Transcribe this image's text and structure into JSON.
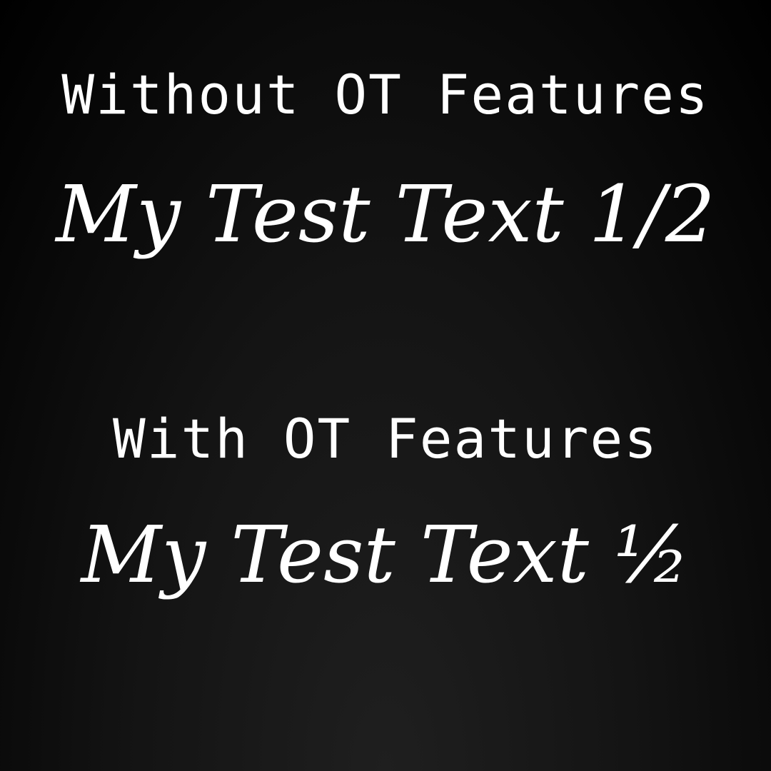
{
  "without_section": {
    "heading": "Without OT Features",
    "sample": "My Test Text 1/2"
  },
  "with_section": {
    "heading": "With OT Features",
    "sample": "My Test Text ½"
  },
  "colors": {
    "background": "#000000",
    "text": "#ffffff"
  }
}
